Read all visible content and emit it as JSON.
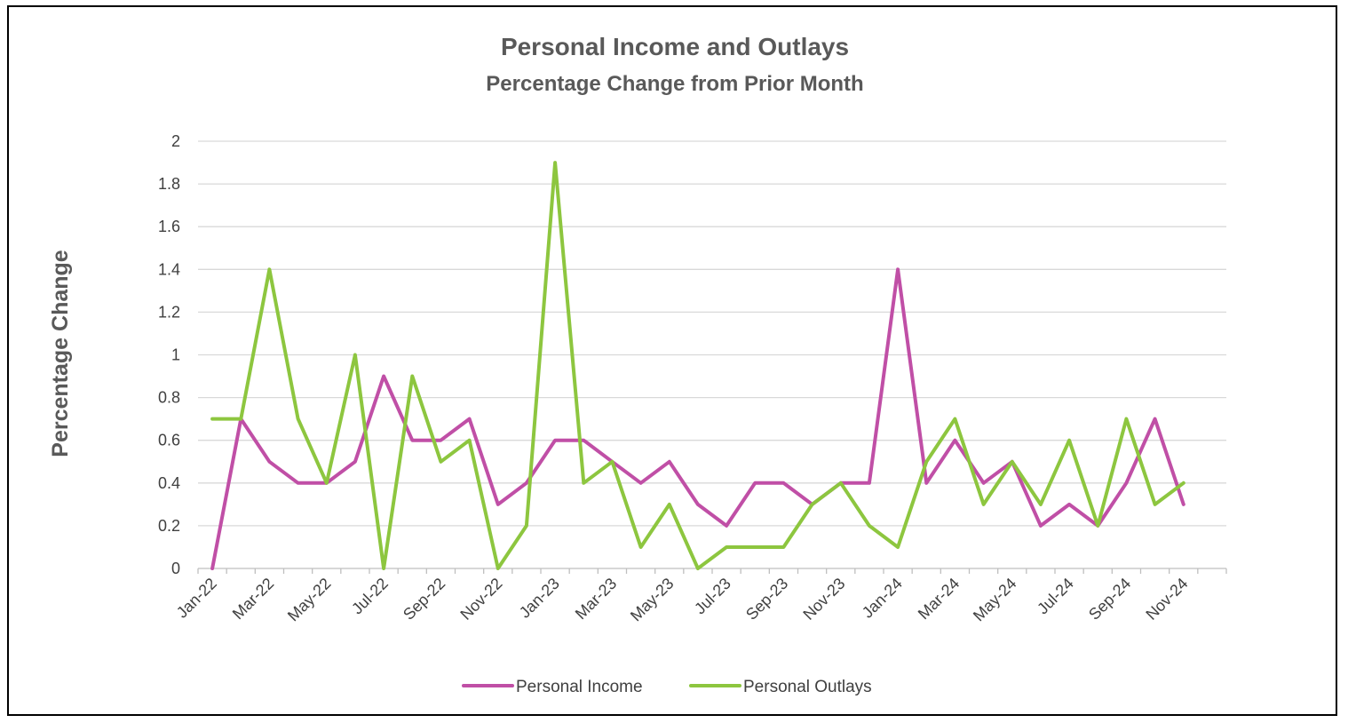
{
  "chart_data": {
    "type": "line",
    "title": "Personal Income and Outlays",
    "subtitle": "Percentage Change from Prior Month",
    "ylabel": "Percentage Change",
    "xlabel": "",
    "ylim": [
      0,
      2
    ],
    "yticks": [
      0,
      0.2,
      0.4,
      0.6,
      0.8,
      1,
      1.2,
      1.4,
      1.6,
      1.8,
      2
    ],
    "ytick_labels": [
      "0",
      "0.2",
      "0.4",
      "0.6",
      "0.8",
      "1",
      "1.2",
      "1.4",
      "1.6",
      "1.8",
      "2"
    ],
    "grid": true,
    "legend": "bottom",
    "categories": [
      "Jan-22",
      "Feb-22",
      "Mar-22",
      "Apr-22",
      "May-22",
      "Jun-22",
      "Jul-22",
      "Aug-22",
      "Sep-22",
      "Oct-22",
      "Nov-22",
      "Dec-22",
      "Jan-23",
      "Feb-23",
      "Mar-23",
      "Apr-23",
      "May-23",
      "Jun-23",
      "Jul-23",
      "Aug-23",
      "Sep-23",
      "Oct-23",
      "Nov-23",
      "Dec-23",
      "Jan-24",
      "Feb-24",
      "Mar-24",
      "Apr-24",
      "May-24",
      "Jun-24",
      "Jul-24",
      "Aug-24",
      "Sep-24",
      "Oct-24",
      "Nov-24",
      "Dec-24"
    ],
    "xtick_labels": [
      "Jan-22",
      "Mar-22",
      "May-22",
      "Jul-22",
      "Sep-22",
      "Nov-22",
      "Jan-23",
      "Mar-23",
      "May-23",
      "Jul-23",
      "Sep-23",
      "Nov-23",
      "Jan-24",
      "Mar-24",
      "May-24",
      "Jul-24",
      "Sep-24",
      "Nov-24"
    ],
    "series": [
      {
        "name": "Personal Income",
        "color": "#C04FA6",
        "values": [
          0,
          0.7,
          0.5,
          0.4,
          0.4,
          0.5,
          0.9,
          0.6,
          0.6,
          0.7,
          0.3,
          0.4,
          0.6,
          0.6,
          0.5,
          0.4,
          0.5,
          0.3,
          0.2,
          0.4,
          0.4,
          0.3,
          0.4,
          0.4,
          1.4,
          0.4,
          0.6,
          0.4,
          0.5,
          0.2,
          0.3,
          0.2,
          0.4,
          0.7,
          0.3,
          null
        ]
      },
      {
        "name": "Personal Outlays",
        "color": "#8DC63F",
        "values": [
          0.7,
          0.7,
          1.4,
          0.7,
          0.4,
          1.0,
          0,
          0.9,
          0.5,
          0.6,
          0,
          0.2,
          1.9,
          0.4,
          0.5,
          0.1,
          0.3,
          0,
          0.1,
          0.1,
          0.1,
          0.3,
          0.4,
          0.2,
          0.1,
          0.5,
          0.7,
          0.3,
          0.5,
          0.3,
          0.6,
          0.2,
          0.7,
          0.3,
          0.4,
          null
        ]
      }
    ]
  }
}
